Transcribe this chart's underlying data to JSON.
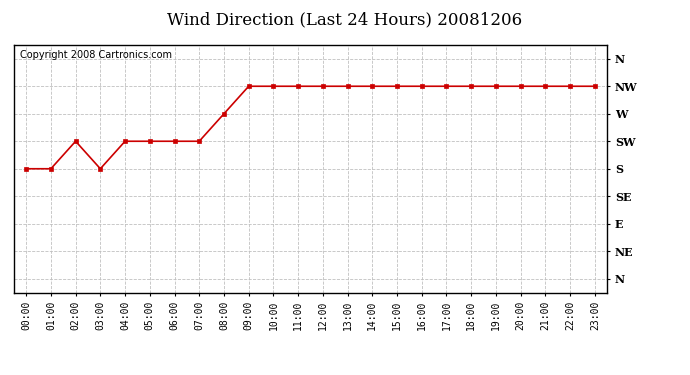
{
  "title": "Wind Direction (Last 24 Hours) 20081206",
  "copyright_text": "Copyright 2008 Cartronics.com",
  "x_labels": [
    "00:00",
    "01:00",
    "02:00",
    "03:00",
    "04:00",
    "05:00",
    "06:00",
    "07:00",
    "08:00",
    "09:00",
    "10:00",
    "11:00",
    "12:00",
    "13:00",
    "14:00",
    "15:00",
    "16:00",
    "17:00",
    "18:00",
    "19:00",
    "20:00",
    "21:00",
    "22:00",
    "23:00"
  ],
  "y_tick_positions": [
    8,
    7,
    6,
    5,
    4,
    3,
    2,
    1,
    0
  ],
  "y_tick_labels": [
    "N",
    "NW",
    "W",
    "SW",
    "S",
    "SE",
    "E",
    "NE",
    "N"
  ],
  "data_values": [
    4,
    4,
    5,
    4,
    5,
    5,
    5,
    5,
    6,
    7,
    7,
    7,
    7,
    7,
    7,
    7,
    7,
    7,
    7,
    7,
    7,
    7,
    7,
    7
  ],
  "line_color": "#cc0000",
  "marker": "s",
  "marker_size": 3,
  "background_color": "#ffffff",
  "grid_color": "#c0c0c0",
  "title_fontsize": 12,
  "copyright_fontsize": 7,
  "tick_fontsize": 7,
  "ytick_fontsize": 8,
  "figsize": [
    6.9,
    3.75
  ],
  "dpi": 100
}
